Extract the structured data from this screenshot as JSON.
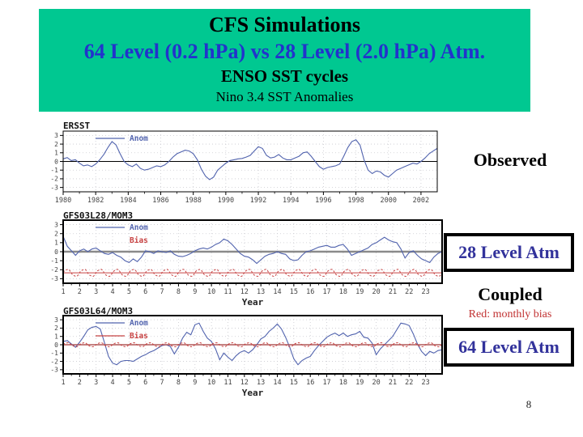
{
  "header": {
    "title": "CFS Simulations",
    "subtitle": "64 Level (0.2 hPa) vs 28 Level (2.0 hPa) Atm.",
    "line3": "ENSO SST cycles",
    "line4": "Nino 3.4 SST Anomalies"
  },
  "annotations": {
    "observed": "Observed",
    "box_28": "28 Level Atm",
    "coupled": "Coupled",
    "red_note": "Red: monthly bias",
    "box_64": "64 Level Atm"
  },
  "page": {
    "number": "8"
  },
  "colors": {
    "header_bg": "#00C891",
    "header_subtitle": "#2233CC",
    "box_label_navy": "#32329B",
    "note_red": "#C03030",
    "anom_blue": "#5163AE",
    "bias_red": "#C84444",
    "grid_gray": "#c9c9cf",
    "tick_text": "#444444"
  },
  "chart_data": [
    {
      "type": "line",
      "title": "ERSST",
      "xlabel": "",
      "ylabel": "",
      "xlim": [
        1980,
        2003
      ],
      "ylim": [
        -3.5,
        3.5
      ],
      "xticks": [
        1980,
        1982,
        1984,
        1986,
        1988,
        1990,
        1992,
        1994,
        1996,
        1998,
        2000,
        2002
      ],
      "yticks": [
        3,
        2,
        1,
        0,
        -1,
        -2,
        -3
      ],
      "zero_line": {
        "color": "#000000",
        "width": 1
      },
      "legend": [
        "Anom"
      ],
      "series": [
        {
          "name": "Anom",
          "color": "#5163AE",
          "style": "solid",
          "x0": 1980,
          "dx": 0.25,
          "y": [
            0.3,
            0.45,
            0.1,
            0.2,
            -0.2,
            -0.5,
            -0.4,
            -0.6,
            -0.3,
            0.2,
            0.8,
            1.6,
            2.3,
            1.9,
            0.9,
            0.0,
            -0.4,
            -0.6,
            -0.3,
            -0.8,
            -1.0,
            -0.9,
            -0.7,
            -0.5,
            -0.6,
            -0.4,
            0.0,
            0.5,
            0.9,
            1.1,
            1.3,
            1.2,
            0.9,
            0.2,
            -0.9,
            -1.7,
            -2.1,
            -1.8,
            -1.0,
            -0.6,
            -0.2,
            0.1,
            0.2,
            0.3,
            0.35,
            0.5,
            0.7,
            1.2,
            1.7,
            1.5,
            0.7,
            0.4,
            0.5,
            0.8,
            0.4,
            0.2,
            0.2,
            0.4,
            0.6,
            1.0,
            1.1,
            0.6,
            0.0,
            -0.6,
            -0.9,
            -0.7,
            -0.6,
            -0.5,
            -0.3,
            0.6,
            1.6,
            2.3,
            2.5,
            1.9,
            0.2,
            -1.0,
            -1.4,
            -1.1,
            -1.2,
            -1.6,
            -1.8,
            -1.4,
            -1.0,
            -0.8,
            -0.6,
            -0.4,
            -0.2,
            -0.3,
            0.0,
            0.4,
            0.9,
            1.2,
            1.5
          ]
        }
      ]
    },
    {
      "type": "line",
      "title": "GFS03L28/MOM3",
      "xlabel": "Year",
      "ylabel": "",
      "xlim": [
        1,
        24
      ],
      "ylim": [
        -3.5,
        3.5
      ],
      "xticks": [
        1,
        2,
        3,
        4,
        5,
        6,
        7,
        8,
        9,
        10,
        11,
        12,
        13,
        14,
        15,
        16,
        17,
        18,
        19,
        20,
        21,
        22,
        23
      ],
      "yticks": [
        3,
        2,
        1,
        0,
        -1,
        -2,
        -3
      ],
      "zero_line": {
        "color": "#8a8a8a",
        "width": 2.5
      },
      "legend": [
        "Anom",
        "Bias"
      ],
      "series": [
        {
          "name": "Anom",
          "color": "#5163AE",
          "style": "solid",
          "x0": 1,
          "dx": 0.25,
          "y": [
            1.7,
            0.6,
            0.1,
            -0.4,
            0.1,
            0.3,
            0.0,
            0.3,
            0.4,
            0.1,
            -0.2,
            -0.3,
            -0.1,
            -0.4,
            -0.6,
            -1.0,
            -1.2,
            -0.8,
            -1.1,
            -0.6,
            0.1,
            0.0,
            -0.2,
            0.1,
            0.0,
            -0.1,
            0.1,
            -0.3,
            -0.5,
            -0.55,
            -0.4,
            -0.2,
            0.1,
            0.3,
            0.4,
            0.3,
            0.5,
            0.8,
            1.0,
            1.4,
            1.2,
            0.8,
            0.3,
            -0.2,
            -0.5,
            -0.6,
            -0.9,
            -1.3,
            -0.9,
            -0.5,
            -0.3,
            -0.2,
            0.0,
            -0.2,
            -0.3,
            -0.8,
            -1.0,
            -0.9,
            -0.4,
            0.0,
            0.1,
            0.3,
            0.5,
            0.6,
            0.7,
            0.5,
            0.5,
            0.7,
            0.8,
            0.3,
            -0.4,
            -0.2,
            0.0,
            0.2,
            0.4,
            0.8,
            1.0,
            1.3,
            1.6,
            1.3,
            1.1,
            1.0,
            0.3,
            -0.7,
            -0.1,
            0.1,
            -0.4,
            -0.8,
            -1.0,
            -1.2,
            -0.6,
            -0.2,
            0.0
          ]
        },
        {
          "name": "Bias",
          "color": "#C84444",
          "style": "dashed",
          "pattern": {
            "shape": "annual_cycle",
            "mean": -2.35,
            "amplitude": 0.4,
            "period": 1
          },
          "mean_line": -2.35
        }
      ]
    },
    {
      "type": "line",
      "title": "GFS03L64/MOM3",
      "xlabel": "Year",
      "ylabel": "",
      "xlim": [
        1,
        24
      ],
      "ylim": [
        -3.5,
        3.5
      ],
      "xticks": [
        1,
        2,
        3,
        4,
        5,
        6,
        7,
        8,
        9,
        10,
        11,
        12,
        13,
        14,
        15,
        16,
        17,
        18,
        19,
        20,
        21,
        22,
        23
      ],
      "yticks": [
        3,
        2,
        1,
        0,
        -1,
        -2,
        -3
      ],
      "zero_line": {
        "color": "#000000",
        "width": 1.2
      },
      "legend": [
        "Anom",
        "Bias"
      ],
      "series": [
        {
          "name": "Anom",
          "color": "#5163AE",
          "style": "solid",
          "x0": 1,
          "dx": 0.25,
          "y": [
            0.4,
            0.5,
            0.1,
            -0.3,
            0.3,
            1.0,
            1.8,
            2.1,
            2.2,
            1.9,
            0.3,
            -1.4,
            -2.2,
            -2.4,
            -2.0,
            -1.9,
            -1.9,
            -2.0,
            -1.7,
            -1.4,
            -1.2,
            -0.9,
            -0.7,
            -0.4,
            -0.1,
            0.0,
            -0.2,
            -1.1,
            -0.3,
            0.8,
            1.5,
            1.2,
            2.4,
            2.6,
            1.6,
            0.8,
            0.4,
            -0.5,
            -1.8,
            -1.0,
            -1.5,
            -1.9,
            -1.3,
            -0.9,
            -0.7,
            -1.0,
            -0.6,
            0.0,
            0.7,
            1.0,
            1.6,
            2.0,
            2.5,
            1.9,
            0.9,
            -0.3,
            -1.7,
            -2.4,
            -1.9,
            -1.6,
            -1.4,
            -0.7,
            -0.1,
            0.4,
            0.9,
            1.2,
            1.4,
            1.1,
            1.4,
            1.0,
            1.2,
            1.3,
            1.6,
            0.9,
            0.8,
            0.2,
            -1.2,
            -0.5,
            0.0,
            0.5,
            1.0,
            1.8,
            2.6,
            2.5,
            2.3,
            1.3,
            0.1,
            -0.8,
            -1.3,
            -0.8,
            -1.0,
            -0.7,
            -0.6
          ]
        },
        {
          "name": "Bias",
          "color": "#C84444",
          "style": "dashed",
          "pattern": {
            "shape": "annual_cycle",
            "mean": 0.0,
            "amplitude": 0.25,
            "period": 1
          },
          "mean_line": 0.0
        }
      ]
    }
  ]
}
